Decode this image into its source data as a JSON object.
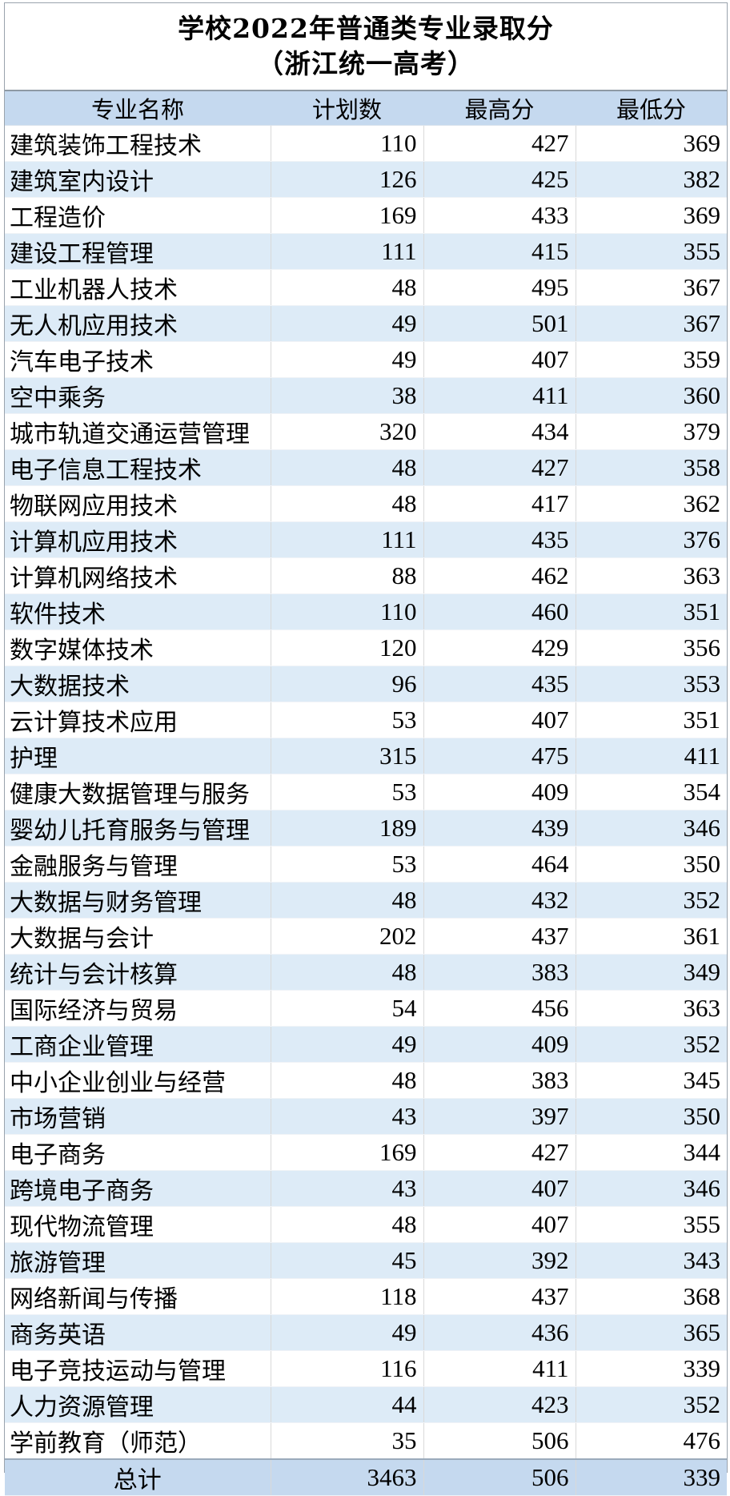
{
  "title_line1": "学校2022年普通类专业录取分",
  "title_line2": "（浙江统一高考）",
  "headers": [
    "专业名称",
    "计划数",
    "最高分",
    "最低分"
  ],
  "rows": [
    [
      "建筑装饰工程技术",
      "110",
      "427",
      "369"
    ],
    [
      "建筑室内设计",
      "126",
      "425",
      "382"
    ],
    [
      "工程造价",
      "169",
      "433",
      "369"
    ],
    [
      "建设工程管理",
      "111",
      "415",
      "355"
    ],
    [
      "工业机器人技术",
      "48",
      "495",
      "367"
    ],
    [
      "无人机应用技术",
      "49",
      "501",
      "367"
    ],
    [
      "汽车电子技术",
      "49",
      "407",
      "359"
    ],
    [
      "空中乘务",
      "38",
      "411",
      "360"
    ],
    [
      "城市轨道交通运营管理",
      "320",
      "434",
      "379"
    ],
    [
      "电子信息工程技术",
      "48",
      "427",
      "358"
    ],
    [
      "物联网应用技术",
      "48",
      "417",
      "362"
    ],
    [
      "计算机应用技术",
      "111",
      "435",
      "376"
    ],
    [
      "计算机网络技术",
      "88",
      "462",
      "363"
    ],
    [
      "软件技术",
      "110",
      "460",
      "351"
    ],
    [
      "数字媒体技术",
      "120",
      "429",
      "356"
    ],
    [
      "大数据技术",
      "96",
      "435",
      "353"
    ],
    [
      "云计算技术应用",
      "53",
      "407",
      "351"
    ],
    [
      "护理",
      "315",
      "475",
      "411"
    ],
    [
      "健康大数据管理与服务",
      "53",
      "409",
      "354"
    ],
    [
      "婴幼儿托育服务与管理",
      "189",
      "439",
      "346"
    ],
    [
      "金融服务与管理",
      "53",
      "464",
      "350"
    ],
    [
      "大数据与财务管理",
      "48",
      "432",
      "352"
    ],
    [
      "大数据与会计",
      "202",
      "437",
      "361"
    ],
    [
      "统计与会计核算",
      "48",
      "383",
      "349"
    ],
    [
      "国际经济与贸易",
      "54",
      "456",
      "363"
    ],
    [
      "工商企业管理",
      "49",
      "409",
      "352"
    ],
    [
      "中小企业创业与经营",
      "48",
      "383",
      "345"
    ],
    [
      "市场营销",
      "43",
      "397",
      "350"
    ],
    [
      "电子商务",
      "169",
      "427",
      "344"
    ],
    [
      "跨境电子商务",
      "43",
      "407",
      "346"
    ],
    [
      "现代物流管理",
      "48",
      "407",
      "355"
    ],
    [
      "旅游管理",
      "45",
      "392",
      "343"
    ],
    [
      "网络新闻与传播",
      "118",
      "437",
      "368"
    ],
    [
      "商务英语",
      "49",
      "436",
      "365"
    ],
    [
      "电子竞技运动与管理",
      "116",
      "411",
      "339"
    ],
    [
      "人力资源管理",
      "44",
      "423",
      "352"
    ],
    [
      "学前教育（师范）",
      "35",
      "506",
      "476"
    ]
  ],
  "total": [
    "总计",
    "3463",
    "506",
    "339"
  ],
  "colors": {
    "header_fill": "#c5d9ef",
    "band_fill": "#ddebf7",
    "white": "#ffffff"
  }
}
